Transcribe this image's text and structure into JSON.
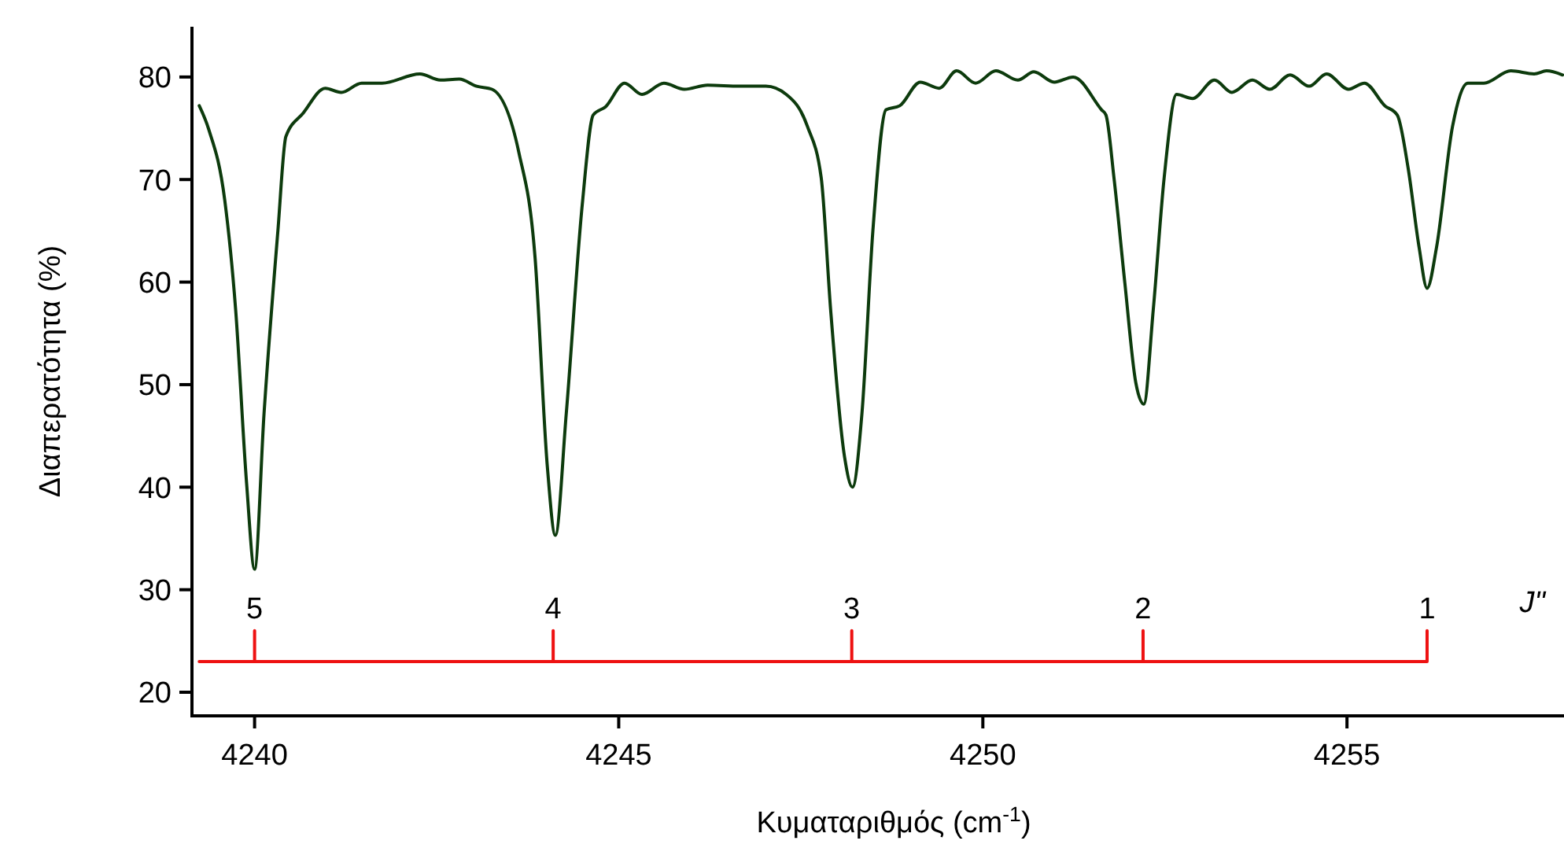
{
  "chart_data": {
    "type": "line",
    "xlabel": "Κυματαριθμός (cm$^{-1}$)",
    "ylabel": "Διαπερατότητα (%)",
    "xlim": [
      4239.14,
      4257.98
    ],
    "xticks": [
      4240,
      4245,
      4250,
      4255
    ],
    "ylim": [
      17.7,
      84.9
    ],
    "yticks": [
      20,
      30,
      40,
      50,
      60,
      70,
      80
    ],
    "grid": false,
    "marker": "none",
    "line_style": "solid",
    "series": [
      {
        "color": "#0d3b0d",
        "x": [
          4239.24,
          4239.37,
          4239.59,
          4239.74,
          4239.89,
          4240.0,
          4240.13,
          4240.32,
          4240.43,
          4240.67,
          4240.97,
          4241.19,
          4241.47,
          4241.75,
          4242.27,
          4242.55,
          4242.81,
          4243.05,
          4243.26,
          4243.63,
          4243.85,
          4244.02,
          4244.13,
          4244.28,
          4244.5,
          4244.65,
          4244.82,
          4245.08,
          4245.32,
          4245.62,
          4245.9,
          4246.22,
          4246.66,
          4247.02,
          4247.3,
          4247.59,
          4247.78,
          4247.91,
          4248.1,
          4248.21,
          4248.34,
          4248.49,
          4248.67,
          4248.86,
          4249.14,
          4249.4,
          4249.64,
          4249.9,
          4250.18,
          4250.48,
          4250.7,
          4250.98,
          4251.24,
          4251.63,
          4251.69,
          4251.8,
          4251.95,
          4252.1,
          4252.21,
          4252.34,
          4252.49,
          4252.66,
          4252.88,
          4253.18,
          4253.42,
          4253.7,
          4253.94,
          4254.22,
          4254.48,
          4254.72,
          4255.02,
          4255.24,
          4255.52,
          4255.69,
          4255.84,
          4255.99,
          4256.1,
          4256.23,
          4256.45,
          4256.66,
          4256.88,
          4257.25,
          4257.57,
          4257.74,
          4257.96
        ],
        "values": [
          77.2,
          74.9,
          68,
          57.3,
          40.4,
          32,
          47.2,
          65,
          74.2,
          76.5,
          78.9,
          78.5,
          79.4,
          79.4,
          80.3,
          79.7,
          79.8,
          79.1,
          78.8,
          72.6,
          62.5,
          42,
          35.3,
          47.2,
          67.6,
          76.3,
          77.1,
          79.4,
          78.3,
          79.4,
          78.8,
          79.2,
          79.1,
          79.1,
          78.3,
          75.2,
          70.2,
          57.3,
          43,
          40,
          47.2,
          65,
          76.8,
          77.2,
          79.5,
          78.9,
          80.6,
          79.4,
          80.6,
          79.7,
          80.5,
          79.5,
          80,
          76.8,
          76.3,
          70.2,
          59.9,
          50.2,
          48.1,
          57.3,
          70.2,
          78.3,
          77.9,
          79.7,
          78.5,
          79.7,
          78.8,
          80.2,
          79.1,
          80.3,
          78.8,
          79.4,
          77.2,
          76.3,
          71.1,
          63.4,
          59.4,
          63.4,
          75.2,
          79.4,
          79.4,
          80.6,
          80.3,
          80.6,
          80.2
        ]
      },
      {
        "color": "#ee1111",
        "x": [
          4239.24,
          4240.0,
          4240.0,
          4240.0,
          4244.1,
          4244.1,
          4244.1,
          4248.2,
          4248.2,
          4248.2,
          4252.2,
          4252.2,
          4252.2,
          4256.1,
          4256.1
        ],
        "values": [
          23,
          23,
          26,
          23,
          23,
          26,
          23,
          23,
          26,
          23,
          23,
          26,
          23,
          23,
          26
        ]
      }
    ],
    "annotations": [
      {
        "text": "5",
        "x": 4240.0,
        "y": 26
      },
      {
        "text": "4",
        "x": 4244.1,
        "y": 26
      },
      {
        "text": "3",
        "x": 4248.2,
        "y": 26
      },
      {
        "text": "2",
        "x": 4252.2,
        "y": 26
      },
      {
        "text": "1",
        "x": 4256.1,
        "y": 26
      },
      "J\""
    ]
  }
}
